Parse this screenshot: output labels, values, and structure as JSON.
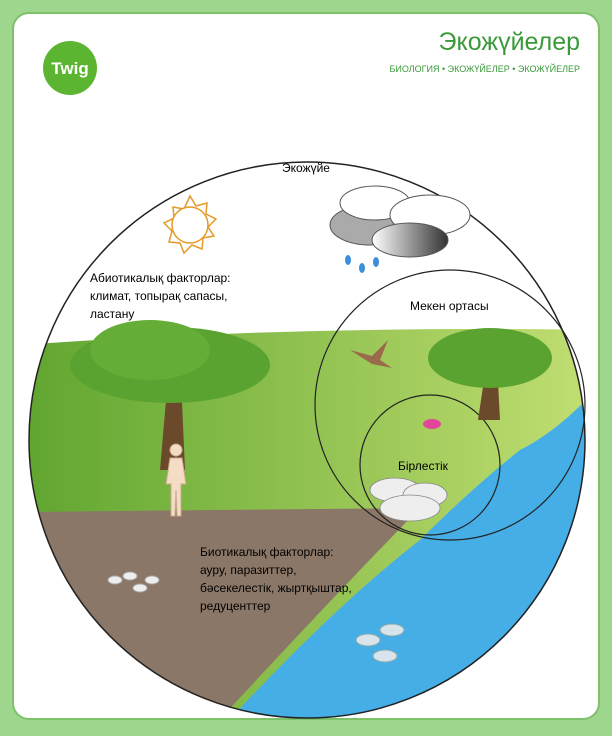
{
  "header": {
    "logo": "Twig",
    "title": "Экожүйелер",
    "breadcrumb": "БИОЛОГИЯ • ЭКОЖҮЙЕЛЕР • ЭКОЖҮЙЕЛЕР"
  },
  "diagram": {
    "ecosystem": "Экожүйе",
    "abiotic": [
      "Абиотикалық факторлар:",
      "климат, топырақ сапасы,",
      "ластану"
    ],
    "habitat": "Мекен ортасы",
    "community": "Бірлестік",
    "biotic": [
      "Биотикалық факторлар:",
      "ауру, паразиттер,",
      "бәсекелестік, жыртқыштар,",
      "редуценттер"
    ]
  }
}
